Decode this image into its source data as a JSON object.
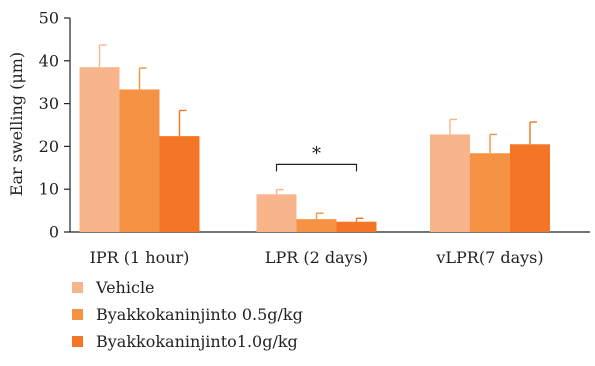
{
  "chart_data": {
    "type": "bar",
    "categories": [
      "IPR (1 hour)",
      "LPR (2 days)",
      "vLPR(7 days)"
    ],
    "ylabel": "Ear swelling (μm)",
    "ylim": [
      0,
      50
    ],
    "yticks": [
      0,
      10,
      20,
      30,
      40,
      50
    ],
    "legend_position": "bottom-left",
    "series": [
      {
        "name": "Vehicle",
        "color": "#F8B48A",
        "values": [
          38.5,
          8.8,
          22.8
        ],
        "errors": [
          5.2,
          1.1,
          3.5
        ]
      },
      {
        "name": "Byakkokaninjinto 0.5g/kg",
        "color": "#F59244",
        "values": [
          33.3,
          3.0,
          18.4
        ],
        "errors": [
          5.0,
          1.4,
          4.4
        ]
      },
      {
        "name": "Byakkokaninjinto1.0g/kg",
        "color": "#F37525",
        "values": [
          22.4,
          2.4,
          20.5
        ],
        "errors": [
          6.0,
          0.8,
          5.2
        ]
      }
    ],
    "annotations": [
      {
        "text": "*",
        "category_index": 1,
        "from_series": 0,
        "to_series": 2,
        "y": 15.8
      }
    ]
  }
}
